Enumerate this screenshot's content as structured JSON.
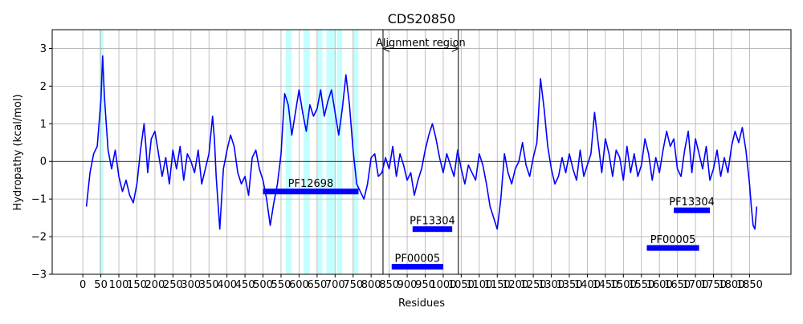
{
  "chart_data": {
    "type": "line",
    "title": "CDS20850",
    "xlabel": "Residues",
    "ylabel": "Hydropathy (kcal/mol)",
    "xlim": [
      -85,
      1965
    ],
    "ylim": [
      -3,
      3.5
    ],
    "grid": true,
    "x_ticks": [
      0,
      50,
      100,
      150,
      200,
      250,
      300,
      350,
      400,
      450,
      500,
      550,
      600,
      650,
      700,
      750,
      800,
      850,
      900,
      950,
      1000,
      1050,
      1100,
      1150,
      1200,
      1250,
      1300,
      1350,
      1400,
      1450,
      1500,
      1550,
      1600,
      1650,
      1700,
      1750,
      1800,
      1850
    ],
    "y_ticks": [
      -3,
      -2,
      -1,
      0,
      1,
      2,
      3
    ],
    "series": [
      {
        "color": "#0000ff",
        "x": [
          10,
          20,
          30,
          40,
          45,
          50,
          55,
          60,
          65,
          70,
          80,
          90,
          100,
          110,
          120,
          130,
          140,
          150,
          160,
          170,
          175,
          180,
          190,
          200,
          210,
          220,
          230,
          240,
          250,
          260,
          270,
          280,
          290,
          300,
          310,
          320,
          330,
          340,
          350,
          360,
          365,
          370,
          380,
          390,
          400,
          410,
          420,
          430,
          440,
          450,
          460,
          470,
          480,
          490,
          500,
          510,
          520,
          530,
          540,
          550,
          555,
          560,
          570,
          580,
          590,
          600,
          610,
          620,
          630,
          640,
          650,
          660,
          670,
          680,
          690,
          700,
          710,
          720,
          730,
          740,
          750,
          760,
          770,
          780,
          790,
          800,
          810,
          820,
          830,
          840,
          850,
          860,
          870,
          880,
          890,
          900,
          910,
          920,
          930,
          940,
          950,
          960,
          970,
          980,
          990,
          1000,
          1010,
          1020,
          1030,
          1040,
          1050,
          1060,
          1070,
          1080,
          1090,
          1100,
          1110,
          1120,
          1130,
          1140,
          1150,
          1160,
          1170,
          1180,
          1190,
          1200,
          1210,
          1220,
          1230,
          1240,
          1250,
          1260,
          1270,
          1280,
          1290,
          1300,
          1310,
          1320,
          1330,
          1340,
          1350,
          1360,
          1370,
          1380,
          1390,
          1400,
          1410,
          1420,
          1430,
          1440,
          1450,
          1460,
          1470,
          1480,
          1490,
          1500,
          1510,
          1520,
          1530,
          1540,
          1550,
          1560,
          1570,
          1580,
          1590,
          1600,
          1610,
          1620,
          1630,
          1640,
          1650,
          1660,
          1670,
          1680,
          1690,
          1700,
          1710,
          1720,
          1730,
          1740,
          1750,
          1760,
          1770,
          1780,
          1790,
          1800,
          1810,
          1820,
          1830,
          1840,
          1850,
          1855,
          1860,
          1865,
          1870
        ],
        "y": [
          -1.2,
          -0.3,
          0.2,
          0.4,
          1.0,
          1.6,
          2.8,
          1.7,
          1.0,
          0.3,
          -0.2,
          0.3,
          -0.4,
          -0.8,
          -0.5,
          -0.9,
          -1.1,
          -0.6,
          0.3,
          1.0,
          0.4,
          -0.3,
          0.6,
          0.8,
          0.2,
          -0.4,
          0.1,
          -0.6,
          0.3,
          -0.2,
          0.4,
          -0.5,
          0.2,
          0.0,
          -0.3,
          0.3,
          -0.6,
          -0.2,
          0.2,
          1.2,
          0.6,
          -0.4,
          -1.8,
          -0.2,
          0.3,
          0.7,
          0.4,
          -0.3,
          -0.6,
          -0.4,
          -0.9,
          0.1,
          0.3,
          -0.2,
          -0.5,
          -1.0,
          -1.7,
          -1.1,
          -0.6,
          0.2,
          1.0,
          1.8,
          1.5,
          0.7,
          1.3,
          1.9,
          1.3,
          0.8,
          1.5,
          1.2,
          1.4,
          1.9,
          1.2,
          1.6,
          1.9,
          1.3,
          0.7,
          1.4,
          2.3,
          1.5,
          0.3,
          -0.6,
          -0.8,
          -1.0,
          -0.6,
          0.1,
          0.2,
          -0.4,
          -0.3,
          0.1,
          -0.2,
          0.4,
          -0.4,
          0.2,
          -0.1,
          -0.5,
          -0.3,
          -0.9,
          -0.5,
          -0.2,
          0.3,
          0.7,
          1.0,
          0.6,
          0.1,
          -0.3,
          0.2,
          -0.1,
          -0.4,
          0.3,
          -0.2,
          -0.6,
          -0.1,
          -0.3,
          -0.5,
          0.2,
          -0.1,
          -0.6,
          -1.2,
          -1.5,
          -1.8,
          -1.0,
          0.2,
          -0.3,
          -0.6,
          -0.2,
          0.0,
          0.5,
          -0.1,
          -0.4,
          0.1,
          0.5,
          2.2,
          1.4,
          0.4,
          -0.2,
          -0.6,
          -0.4,
          0.1,
          -0.3,
          0.2,
          -0.2,
          -0.5,
          0.3,
          -0.4,
          -0.1,
          0.2,
          1.3,
          0.5,
          -0.3,
          0.6,
          0.2,
          -0.4,
          0.3,
          0.1,
          -0.5,
          0.4,
          -0.3,
          0.2,
          -0.4,
          -0.1,
          0.6,
          0.2,
          -0.5,
          0.1,
          -0.3,
          0.3,
          0.8,
          0.4,
          0.6,
          -0.2,
          -0.4,
          0.3,
          0.8,
          -0.3,
          0.6,
          0.2,
          -0.2,
          0.4,
          -0.5,
          -0.2,
          0.3,
          -0.4,
          0.1,
          -0.3,
          0.4,
          0.8,
          0.5,
          0.9,
          0.3,
          -0.6,
          -1.2,
          -1.7,
          -1.8,
          -1.2
        ]
      }
    ],
    "highlight_regions": [
      [
        45,
        58
      ],
      [
        563,
        580
      ],
      [
        612,
        630
      ],
      [
        650,
        665
      ],
      [
        676,
        700
      ],
      [
        705,
        720
      ],
      [
        750,
        765
      ]
    ],
    "domains": [
      {
        "label": "PF12698",
        "start": 500,
        "end": 765,
        "y": -0.8
      },
      {
        "label": "PF13304",
        "start": 915,
        "end": 1025,
        "y": -1.8
      },
      {
        "label": "PF00005",
        "start": 857,
        "end": 1000,
        "y": -2.8
      },
      {
        "label": "PF00005",
        "start": 1565,
        "end": 1710,
        "y": -2.3
      },
      {
        "label": "PF13304",
        "start": 1640,
        "end": 1740,
        "y": -1.3
      }
    ],
    "alignment_region": {
      "label": "Alignment region",
      "start": 833,
      "end": 1042,
      "y": 3.0
    }
  }
}
